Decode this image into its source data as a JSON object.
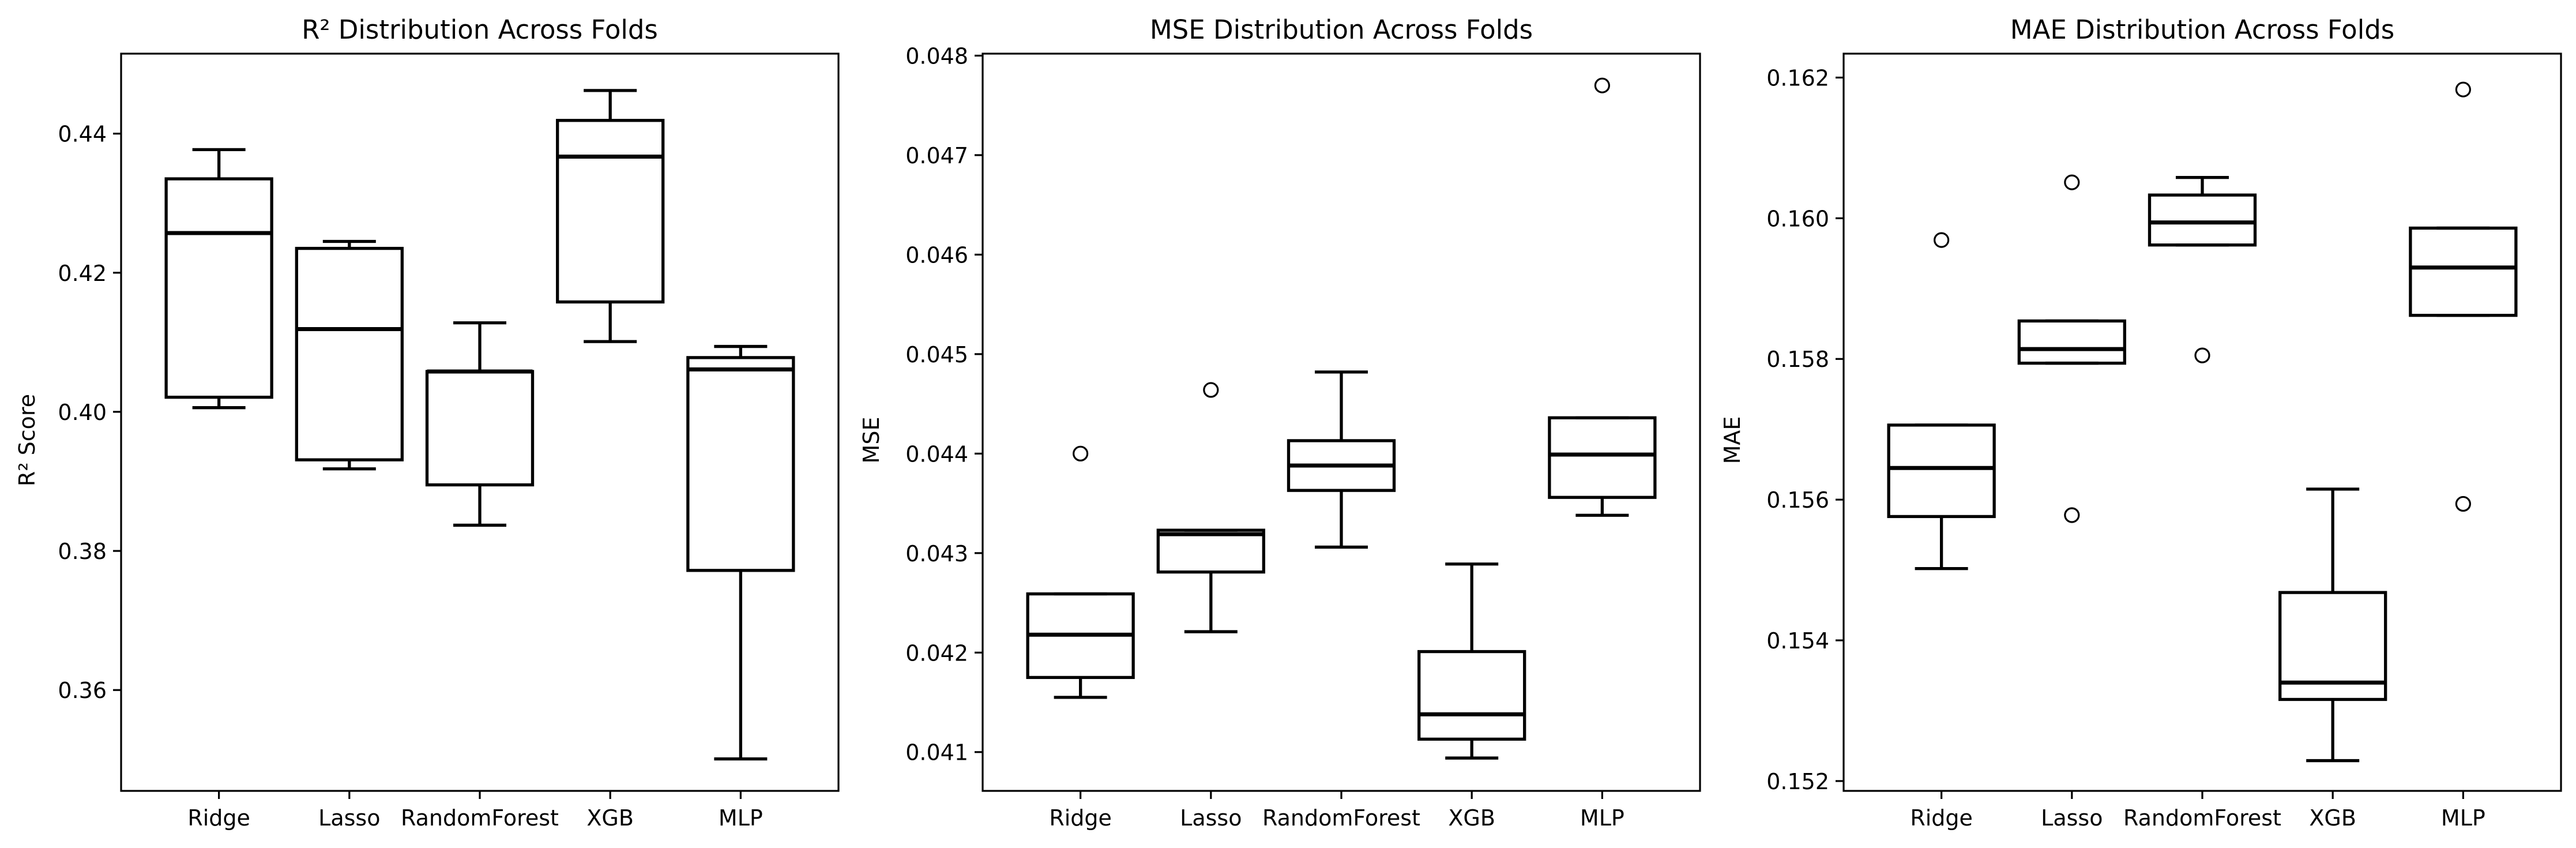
{
  "chart_data": [
    {
      "type": "box",
      "title": "R² Distribution Across Folds",
      "xlabel": "",
      "ylabel": "R² Score",
      "categories": [
        "Ridge",
        "Lasso",
        "RandomForest",
        "XGB",
        "MLP"
      ],
      "ylim": [
        0.3455,
        0.4515
      ],
      "yticks": [
        0.36,
        0.38,
        0.4,
        0.42,
        0.44
      ],
      "ytick_labels": [
        "0.36",
        "0.38",
        "0.40",
        "0.42",
        "0.44"
      ],
      "grid": false,
      "boxes": [
        {
          "whisker_low": 0.4006,
          "q1": 0.4021,
          "median": 0.4257,
          "q3": 0.4335,
          "whisker_high": 0.4377,
          "outliers": []
        },
        {
          "whisker_low": 0.3918,
          "q1": 0.3931,
          "median": 0.4119,
          "q3": 0.4235,
          "whisker_high": 0.4245,
          "outliers": []
        },
        {
          "whisker_low": 0.3837,
          "q1": 0.3895,
          "median": 0.4058,
          "q3": 0.4058,
          "whisker_high": 0.4128,
          "outliers": []
        },
        {
          "whisker_low": 0.4101,
          "q1": 0.4158,
          "median": 0.4367,
          "q3": 0.4419,
          "whisker_high": 0.4462,
          "outliers": []
        },
        {
          "whisker_low": 0.3501,
          "q1": 0.3772,
          "median": 0.4061,
          "q3": 0.4078,
          "whisker_high": 0.4094,
          "outliers": []
        }
      ]
    },
    {
      "type": "box",
      "title": "MSE Distribution Across Folds",
      "xlabel": "",
      "ylabel": "MSE",
      "categories": [
        "Ridge",
        "Lasso",
        "RandomForest",
        "XGB",
        "MLP"
      ],
      "ylim": [
        0.04061,
        0.04802
      ],
      "yticks": [
        0.041,
        0.042,
        0.043,
        0.044,
        0.045,
        0.046,
        0.047,
        0.048
      ],
      "ytick_labels": [
        "0.041",
        "0.042",
        "0.043",
        "0.044",
        "0.045",
        "0.046",
        "0.047",
        "0.048"
      ],
      "grid": false,
      "boxes": [
        {
          "whisker_low": 0.04155,
          "q1": 0.04175,
          "median": 0.04218,
          "q3": 0.04259,
          "whisker_high": 0.04259,
          "outliers": [
            0.044
          ]
        },
        {
          "whisker_low": 0.04221,
          "q1": 0.04281,
          "median": 0.04319,
          "q3": 0.04323,
          "whisker_high": 0.04323,
          "outliers": [
            0.04464
          ]
        },
        {
          "whisker_low": 0.04306,
          "q1": 0.04363,
          "median": 0.04388,
          "q3": 0.04413,
          "whisker_high": 0.04482,
          "outliers": []
        },
        {
          "whisker_low": 0.04094,
          "q1": 0.04113,
          "median": 0.04138,
          "q3": 0.04201,
          "whisker_high": 0.04289,
          "outliers": []
        },
        {
          "whisker_low": 0.04338,
          "q1": 0.04356,
          "median": 0.04399,
          "q3": 0.04436,
          "whisker_high": 0.04436,
          "outliers": [
            0.0477
          ]
        }
      ]
    },
    {
      "type": "box",
      "title": "MAE Distribution Across Folds",
      "xlabel": "",
      "ylabel": "MAE",
      "categories": [
        "Ridge",
        "Lasso",
        "RandomForest",
        "XGB",
        "MLP"
      ],
      "ylim": [
        0.15186,
        0.16234
      ],
      "yticks": [
        0.152,
        0.154,
        0.156,
        0.158,
        0.16,
        0.162
      ],
      "ytick_labels": [
        "0.152",
        "0.154",
        "0.156",
        "0.158",
        "0.160",
        "0.162"
      ],
      "grid": false,
      "boxes": [
        {
          "whisker_low": 0.15502,
          "q1": 0.15576,
          "median": 0.15645,
          "q3": 0.15706,
          "whisker_high": 0.15706,
          "outliers": [
            0.15969
          ]
        },
        {
          "whisker_low": 0.15794,
          "q1": 0.15794,
          "median": 0.15814,
          "q3": 0.15854,
          "whisker_high": 0.15854,
          "outliers": [
            0.15578,
            0.16051
          ]
        },
        {
          "whisker_low": 0.15962,
          "q1": 0.15962,
          "median": 0.15994,
          "q3": 0.16033,
          "whisker_high": 0.16058,
          "outliers": [
            0.15805
          ]
        },
        {
          "whisker_low": 0.15229,
          "q1": 0.15316,
          "median": 0.1534,
          "q3": 0.15468,
          "whisker_high": 0.15615,
          "outliers": []
        },
        {
          "whisker_low": 0.15862,
          "q1": 0.15862,
          "median": 0.1593,
          "q3": 0.15986,
          "whisker_high": 0.15986,
          "outliers": [
            0.15594,
            0.16183
          ]
        }
      ]
    }
  ]
}
